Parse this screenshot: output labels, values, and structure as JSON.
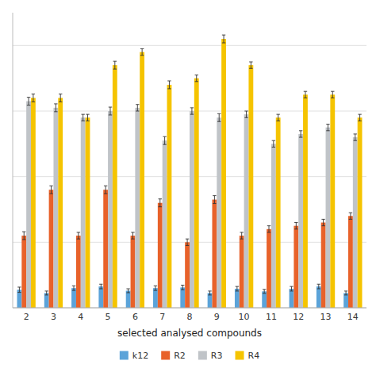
{
  "chart_data": {
    "type": "bar",
    "categories": [
      "2",
      "3",
      "4",
      "5",
      "6",
      "7",
      "8",
      "9",
      "10",
      "11",
      "12",
      "13",
      "14"
    ],
    "series": [
      {
        "name": "k12",
        "color": "#5BA3D9",
        "values": [
          0.055,
          0.045,
          0.06,
          0.065,
          0.052,
          0.06,
          0.062,
          0.045,
          0.058,
          0.05,
          0.058,
          0.065,
          0.045
        ],
        "errors": [
          0.008,
          0.006,
          0.007,
          0.007,
          0.006,
          0.007,
          0.007,
          0.006,
          0.007,
          0.006,
          0.007,
          0.007,
          0.006
        ]
      },
      {
        "name": "R2",
        "color": "#E8622A",
        "values": [
          0.22,
          0.36,
          0.22,
          0.36,
          0.22,
          0.32,
          0.2,
          0.33,
          0.22,
          0.24,
          0.25,
          0.26,
          0.28
        ],
        "errors": [
          0.012,
          0.012,
          0.01,
          0.012,
          0.01,
          0.012,
          0.01,
          0.012,
          0.01,
          0.01,
          0.01,
          0.01,
          0.01
        ]
      },
      {
        "name": "R3",
        "color": "#C0C4C8",
        "values": [
          0.63,
          0.61,
          0.58,
          0.6,
          0.61,
          0.51,
          0.6,
          0.58,
          0.59,
          0.5,
          0.53,
          0.55,
          0.52
        ],
        "errors": [
          0.012,
          0.012,
          0.01,
          0.012,
          0.01,
          0.012,
          0.01,
          0.012,
          0.01,
          0.01,
          0.01,
          0.01,
          0.01
        ]
      },
      {
        "name": "R4",
        "color": "#F5C400",
        "values": [
          0.64,
          0.64,
          0.58,
          0.74,
          0.78,
          0.68,
          0.7,
          0.82,
          0.74,
          0.58,
          0.65,
          0.65,
          0.58
        ],
        "errors": [
          0.012,
          0.012,
          0.01,
          0.012,
          0.01,
          0.012,
          0.01,
          0.012,
          0.01,
          0.01,
          0.01,
          0.01,
          0.01
        ]
      }
    ],
    "xlabel": "selected analysed compounds",
    "ylim": [
      0,
      0.9
    ],
    "yticks": [
      0,
      0.2,
      0.4,
      0.6,
      0.8
    ],
    "grid": true,
    "tick_labels": "x",
    "legend": "bottom"
  }
}
